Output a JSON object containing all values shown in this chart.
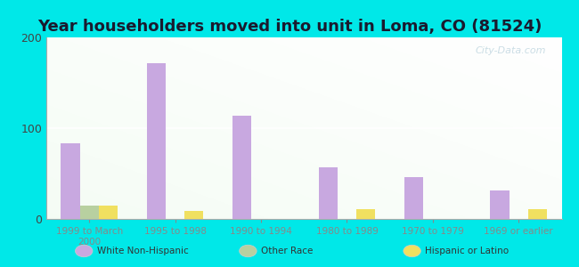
{
  "title": "Year householders moved into unit in Loma, CO (81524)",
  "categories": [
    "1999 to March\n2000",
    "1995 to 1998",
    "1990 to 1994",
    "1980 to 1989",
    "1970 to 1979",
    "1969 or earlier"
  ],
  "white_non_hispanic": [
    83,
    172,
    114,
    57,
    46,
    31
  ],
  "other_race": [
    15,
    0,
    0,
    0,
    0,
    0
  ],
  "hispanic_or_latino": [
    15,
    9,
    0,
    11,
    0,
    11
  ],
  "white_color": "#c8a8e0",
  "other_color": "#b8d0a0",
  "hispanic_color": "#f0e060",
  "ylim": [
    0,
    200
  ],
  "yticks": [
    0,
    100,
    200
  ],
  "background_color": "#00e8e8",
  "bar_width": 0.22,
  "title_fontsize": 13,
  "watermark": "City-Data.com"
}
